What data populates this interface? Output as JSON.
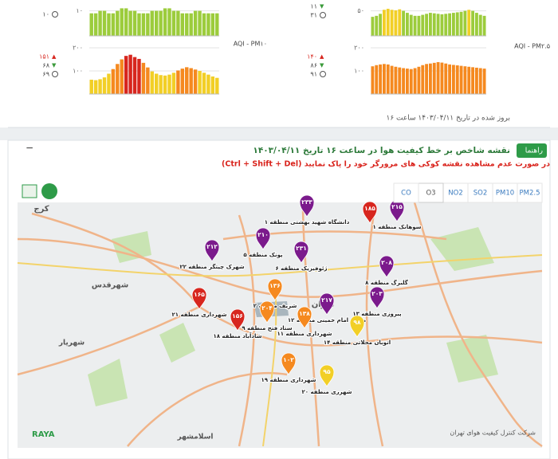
{
  "chart_data": [
    {
      "type": "bar",
      "ylim": [
        0,
        14
      ],
      "yticks": [
        {
          "value": 10,
          "label": "۱۰"
        }
      ],
      "values": [
        9,
        9,
        10,
        10,
        9,
        9,
        10,
        11,
        11,
        10,
        10,
        9,
        9,
        9,
        10,
        10,
        10,
        11,
        11,
        10,
        10,
        9,
        9,
        9,
        10,
        10,
        9,
        9,
        9,
        9
      ],
      "colors": [
        "#9ccc3c",
        "#9ccc3c",
        "#9ccc3c",
        "#9ccc3c",
        "#9ccc3c",
        "#9ccc3c",
        "#9ccc3c",
        "#9ccc3c",
        "#9ccc3c",
        "#9ccc3c",
        "#9ccc3c",
        "#9ccc3c",
        "#9ccc3c",
        "#9ccc3c",
        "#9ccc3c",
        "#9ccc3c",
        "#9ccc3c",
        "#9ccc3c",
        "#9ccc3c",
        "#9ccc3c",
        "#9ccc3c",
        "#9ccc3c",
        "#9ccc3c",
        "#9ccc3c",
        "#9ccc3c",
        "#9ccc3c",
        "#9ccc3c",
        "#9ccc3c",
        "#9ccc3c",
        "#9ccc3c"
      ]
    },
    {
      "type": "bar",
      "ylim": [
        0,
        70
      ],
      "yticks": [
        {
          "value": 50,
          "label": "۵۰"
        }
      ],
      "values": [
        38,
        40,
        44,
        52,
        54,
        52,
        51,
        53,
        50,
        46,
        42,
        40,
        40,
        42,
        44,
        46,
        45,
        44,
        43,
        44,
        45,
        46,
        47,
        48,
        50,
        52,
        50,
        46,
        42,
        40
      ],
      "colors": [
        "#9ccc3c",
        "#9ccc3c",
        "#9ccc3c",
        "#f2cf26",
        "#f2cf26",
        "#f2cf26",
        "#f2cf26",
        "#f2cf26",
        "#9ccc3c",
        "#9ccc3c",
        "#9ccc3c",
        "#9ccc3c",
        "#9ccc3c",
        "#9ccc3c",
        "#9ccc3c",
        "#9ccc3c",
        "#9ccc3c",
        "#9ccc3c",
        "#9ccc3c",
        "#9ccc3c",
        "#9ccc3c",
        "#9ccc3c",
        "#9ccc3c",
        "#9ccc3c",
        "#9ccc3c",
        "#f2cf26",
        "#9ccc3c",
        "#9ccc3c",
        "#9ccc3c",
        "#9ccc3c"
      ]
    },
    {
      "type": "bar",
      "title": "AQI - PM۱۰",
      "ylim": [
        0,
        200
      ],
      "yticks": [
        {
          "value": 100,
          "label": "۱۰۰"
        },
        {
          "value": 200,
          "label": "۲۰۰"
        }
      ],
      "values": [
        62,
        60,
        64,
        72,
        88,
        108,
        130,
        150,
        165,
        170,
        160,
        152,
        135,
        115,
        98,
        88,
        82,
        80,
        84,
        92,
        102,
        110,
        116,
        112,
        106,
        100,
        92,
        84,
        76,
        70
      ],
      "colors": [
        "#f2cf26",
        "#f2cf26",
        "#f2cf26",
        "#f2cf26",
        "#f2cf26",
        "#f5891f",
        "#f5891f",
        "#f5891f",
        "#d7261e",
        "#d7261e",
        "#d7261e",
        "#d7261e",
        "#f5891f",
        "#f5891f",
        "#f2cf26",
        "#f2cf26",
        "#f2cf26",
        "#f2cf26",
        "#f2cf26",
        "#f2cf26",
        "#f5891f",
        "#f5891f",
        "#f5891f",
        "#f5891f",
        "#f5891f",
        "#f2cf26",
        "#f2cf26",
        "#f2cf26",
        "#f2cf26",
        "#f2cf26"
      ]
    },
    {
      "type": "bar",
      "title": "AQI - PM۲.۵",
      "ylim": [
        0,
        200
      ],
      "yticks": [
        {
          "value": 100,
          "label": "۱۰۰"
        },
        {
          "value": 200,
          "label": "۲۰۰"
        }
      ],
      "values": [
        120,
        125,
        128,
        130,
        128,
        122,
        118,
        115,
        112,
        110,
        108,
        112,
        118,
        125,
        130,
        132,
        135,
        138,
        136,
        132,
        128,
        126,
        124,
        122,
        120,
        118,
        116,
        114,
        112,
        110
      ],
      "colors": [
        "#f5891f",
        "#f5891f",
        "#f5891f",
        "#f5891f",
        "#f5891f",
        "#f5891f",
        "#f5891f",
        "#f5891f",
        "#f5891f",
        "#f5891f",
        "#f5891f",
        "#f5891f",
        "#f5891f",
        "#f5891f",
        "#f5891f",
        "#f5891f",
        "#f5891f",
        "#f5891f",
        "#f5891f",
        "#f5891f",
        "#f5891f",
        "#f5891f",
        "#f5891f",
        "#f5891f",
        "#f5891f",
        "#f5891f",
        "#f5891f",
        "#f5891f",
        "#f5891f",
        "#f5891f"
      ]
    }
  ],
  "panels": [
    {
      "avg": "۱۰"
    },
    {
      "min": "۱۱",
      "avg": "۳۱"
    },
    {
      "max": "۱۵۱",
      "min": "۶۸",
      "avg": "۶۹"
    },
    {
      "max": "۱۴۰",
      "min": "۸۶",
      "avg": "۹۱"
    }
  ],
  "updated": "بروز شده در تاریخ ۱۴۰۳/۰۴/۱۱ ساعت ۱۶",
  "map": {
    "guide_button": "راهنما",
    "title": "نقشه شاخص بر خط کیفیت هوا در ساعت ۱۶ تاریخ ۱۴۰۳/۰۴/۱۱",
    "warning": "در صورت عدم مشاهده نقشه کوکی های مرورگر خود را پاک نمایید (Ctrl + Shift + Del)",
    "tabs": [
      {
        "label": "PM2.5"
      },
      {
        "label": "PM10"
      },
      {
        "label": "SO2"
      },
      {
        "label": "NO2"
      },
      {
        "label": "O3",
        "active": true
      },
      {
        "label": "CO"
      }
    ],
    "places": [
      "کرج",
      "تهران",
      "شهرقدس",
      "شهریار",
      "اسلامشهر"
    ],
    "markers": [
      {
        "name": "دانشگاه شهید بهشتی منطقه ۱",
        "value": 233,
        "value_label": "۲۳۳",
        "color": "#7b1a8c"
      },
      {
        "value": 185,
        "value_label": "۱۸۵",
        "color": "#d7261e"
      },
      {
        "name": "سوهانک منطقه ۱",
        "value": 215,
        "value_label": "۲۱۵",
        "color": "#7b1a8c"
      },
      {
        "name": "شهرک چیتگر منطقه ۲۲",
        "value": 212,
        "value_label": "۲۱۲",
        "color": "#7b1a8c"
      },
      {
        "name": "پونک منطقه ۵",
        "value": 210,
        "value_label": "۲۱۰",
        "color": "#7b1a8c"
      },
      {
        "name": "ژئوفیزیک منطقه ۶",
        "value": 231,
        "value_label": "۲۳۱",
        "color": "#7b1a8c"
      },
      {
        "name": "گلبرگ منطقه ۸",
        "value": 208,
        "value_label": "۲۰۸",
        "color": "#7b1a8c"
      },
      {
        "name": "پیروزی منطقه ۱۳",
        "value": 203,
        "value_label": "۲۰۳",
        "color": "#7b1a8c"
      },
      {
        "name": "میدان امام خمینی منطقه ۱۲",
        "value": 217,
        "value_label": "۲۱۷",
        "color": "#7b1a8c"
      },
      {
        "name": "شریف منطقه ۲",
        "value": 136,
        "value_label": "۱۳۶",
        "color": "#f5891f"
      },
      {
        "name": "ستاد فتح منطقه ۹",
        "value": 204,
        "value_label": "۲۰۴",
        "color": "#f5891f"
      },
      {
        "name": "شهرداری منطقه ۱۱",
        "value": 138,
        "value_label": "۱۳۸",
        "color": "#f5891f"
      },
      {
        "name": "شهرداری منطقه ۲۱",
        "value": 165,
        "value_label": "۱۶۵",
        "color": "#d7261e"
      },
      {
        "name": "شادآباد منطقه ۱۸",
        "value": 156,
        "value_label": "۱۵۶",
        "color": "#d7261e"
      },
      {
        "name": "اتوبان محلاتی منطقه ۱۴",
        "value": 98,
        "value_label": "۹۸",
        "color": "#f2cf26"
      },
      {
        "name": "شهرداری منطقه ۱۹",
        "value": 102,
        "value_label": "۱۰۲",
        "color": "#f5891f"
      },
      {
        "name": "شهرری منطقه ۲۰",
        "value": 95,
        "value_label": "۹۵",
        "color": "#f2cf26"
      }
    ],
    "logo": "RAYA",
    "credit": "شرکت کنترل کیفیت هوای تهران"
  }
}
